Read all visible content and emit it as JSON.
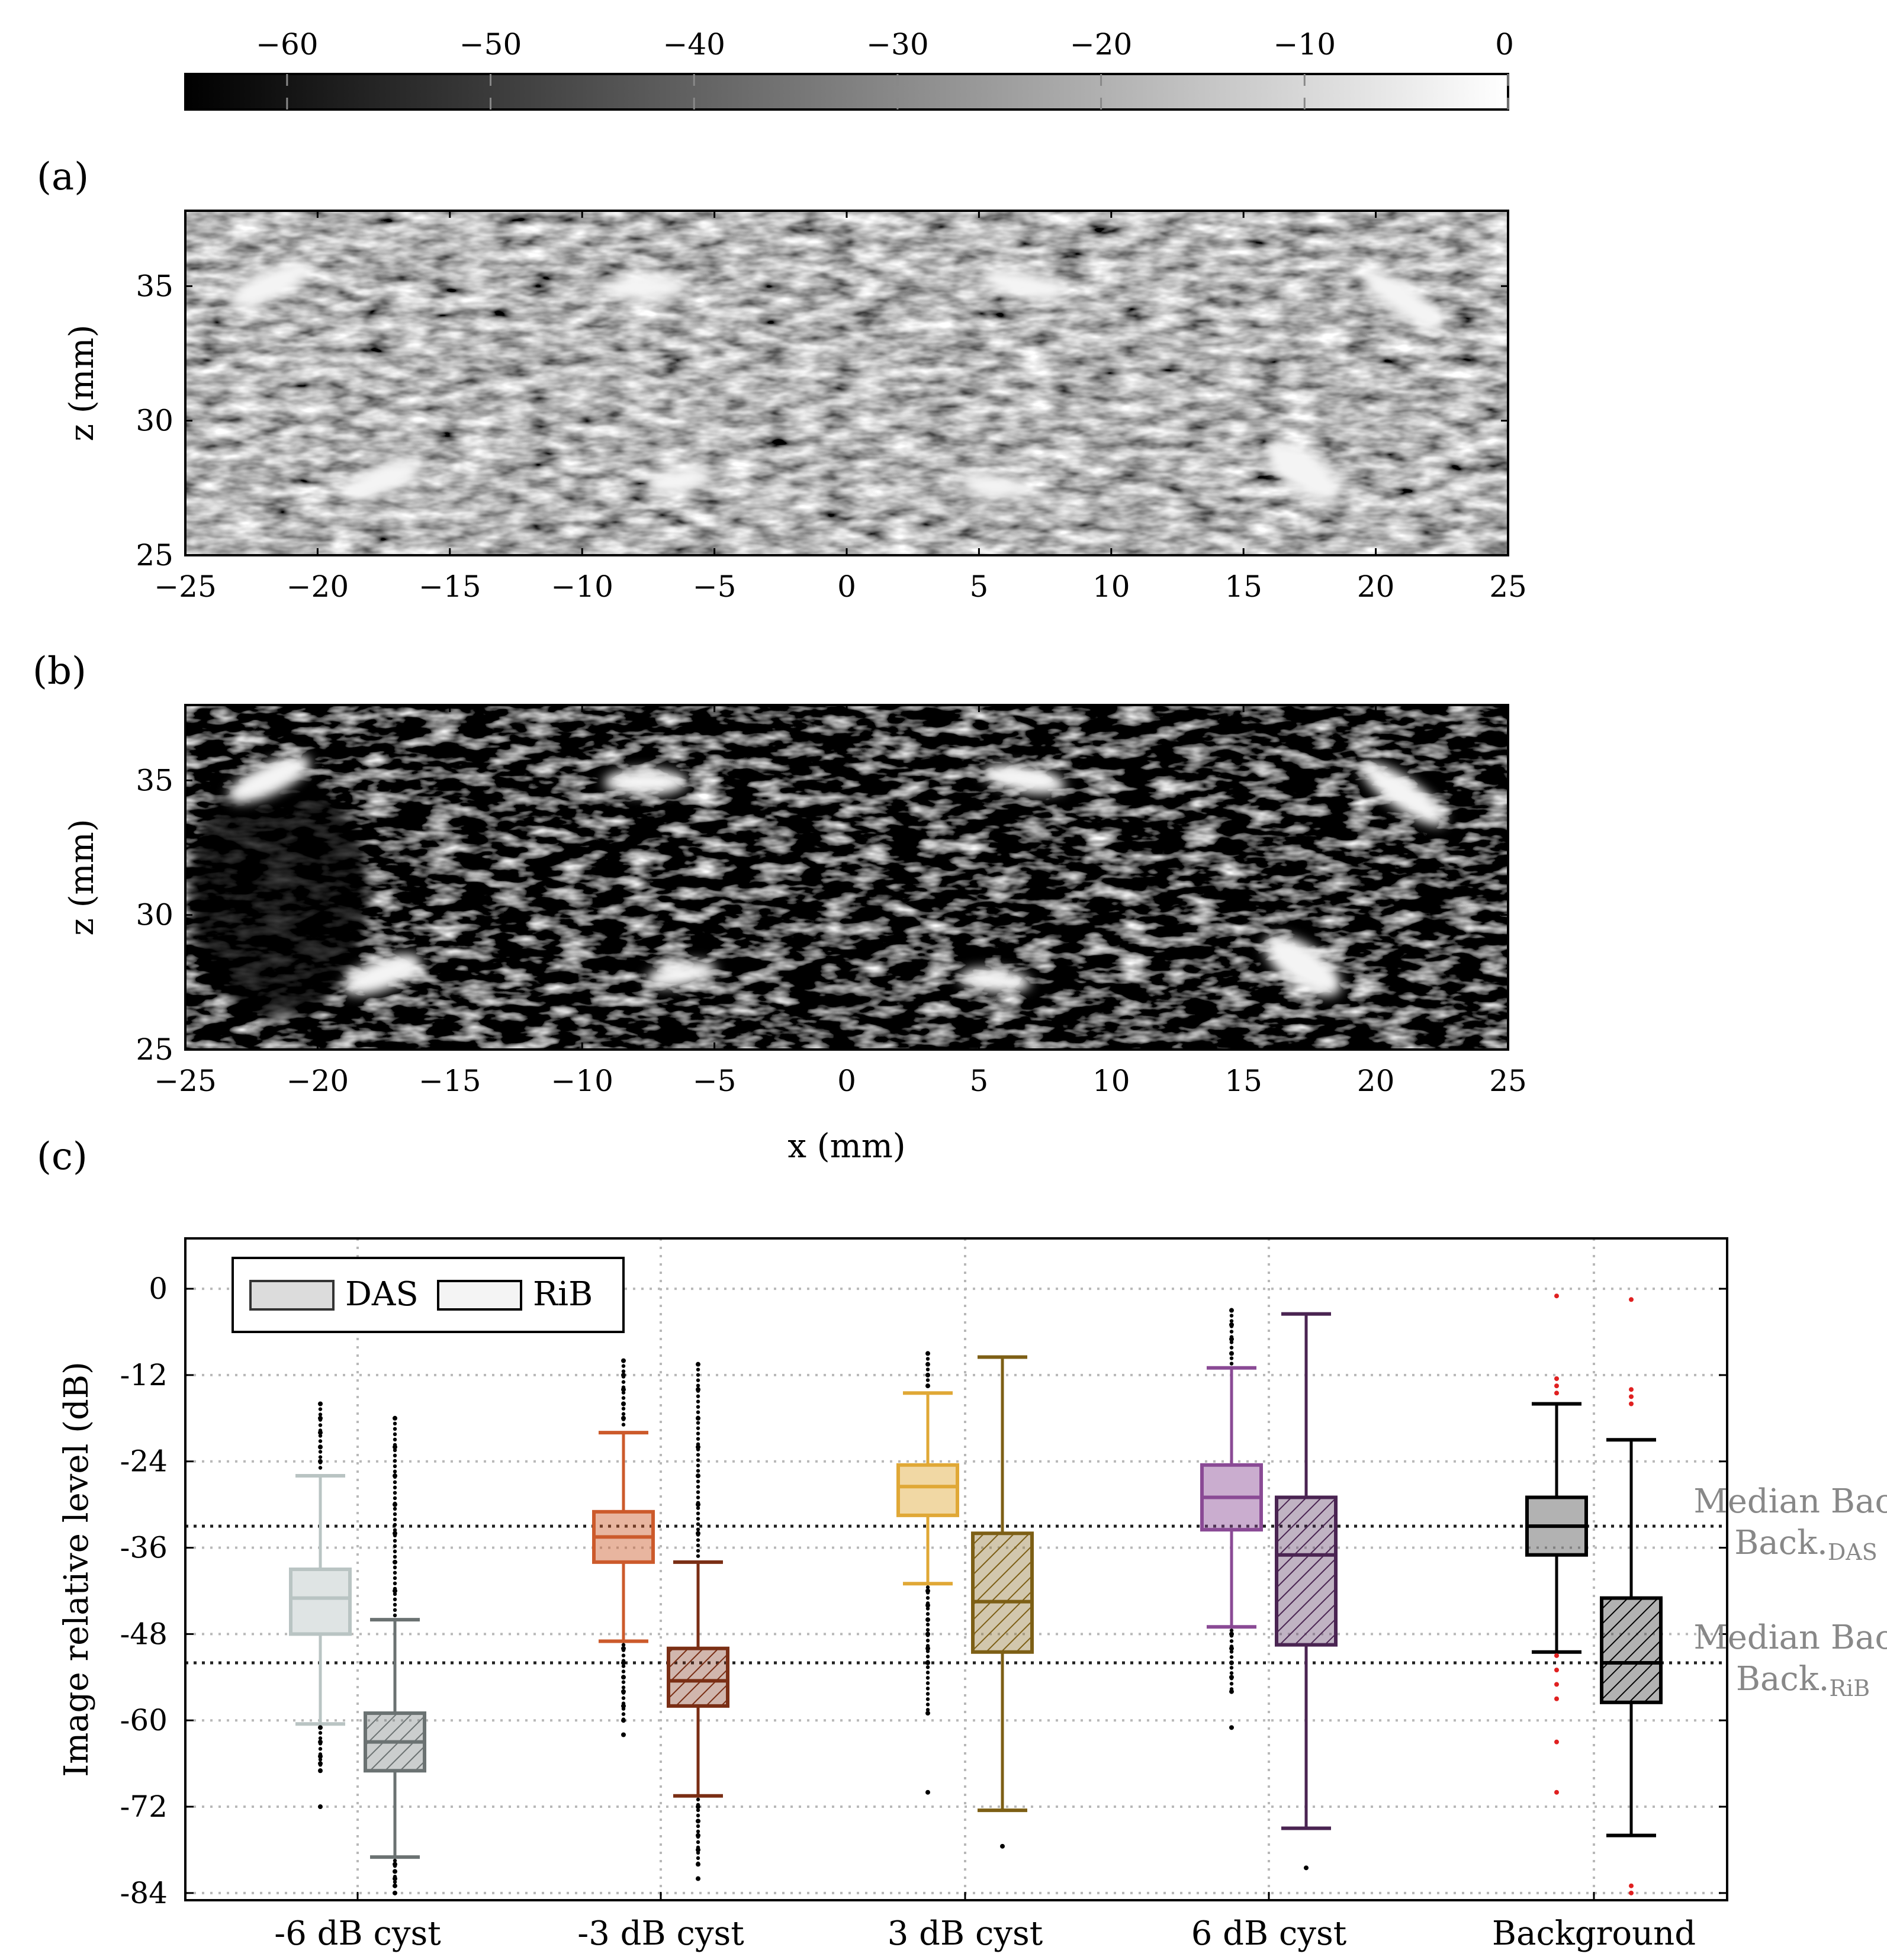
{
  "colorbar": {
    "ticks": [
      -60,
      -50,
      -40,
      -30,
      -20,
      -10,
      0
    ],
    "tick_labels": [
      "−60",
      "−50",
      "−40",
      "−30",
      "−20",
      "−10",
      "0"
    ],
    "range": [
      -65,
      0
    ],
    "colormap": "grayscale (black to white)"
  },
  "panel_a": {
    "label": "(a)",
    "ylabel": "z (mm)",
    "yticks": [
      "35",
      "30",
      "25"
    ],
    "xticks": [
      "−25",
      "−20",
      "−15",
      "−10",
      "−5",
      "0",
      "5",
      "10",
      "15",
      "20",
      "25"
    ]
  },
  "panel_b": {
    "label": "(b)",
    "ylabel": "z (mm)",
    "yticks": [
      "35",
      "30",
      "25"
    ],
    "xticks": [
      "−25",
      "−20",
      "−15",
      "−10",
      "−5",
      "0",
      "5",
      "10",
      "15",
      "20",
      "25"
    ],
    "xlabel": "x (mm)"
  },
  "panel_c": {
    "label": "(c)"
  },
  "colors": {
    "cyst_m6_das": "#b9c4c3",
    "cyst_m6_rib": "#6b7272",
    "cyst_m3_das": "#cc5a2b",
    "cyst_m3_rib": "#7a2e14",
    "cyst_p3_das": "#e0a836",
    "cyst_p3_rib": "#7d5f15",
    "cyst_p6_das": "#8a4a95",
    "cyst_p6_rib": "#4a2452",
    "background": "#000000",
    "background_outliers": "#e02020"
  },
  "chart_data": {
    "type": "box",
    "title": "",
    "xlabel": "",
    "ylabel": "Image relative level (dB)",
    "ylim": [
      -85,
      7
    ],
    "yticks": [
      0,
      -12,
      -24,
      -36,
      -48,
      -60,
      -72,
      -84
    ],
    "ytick_labels": [
      "0",
      "-12",
      "-24",
      "-36",
      "-48",
      "-60",
      "-72",
      "-84"
    ],
    "categories": [
      "-6 dB cyst",
      "-3 dB cyst",
      "3 dB cyst",
      "6 dB cyst",
      "Background"
    ],
    "legend": {
      "position": "top-left",
      "entries": [
        "DAS",
        "RiB"
      ]
    },
    "series": [
      {
        "name": "DAS",
        "fill": "solid",
        "boxes": [
          {
            "category": "-6 dB cyst",
            "whisker_low": -60.5,
            "q1": -48,
            "median": -43,
            "q3": -39,
            "whisker_high": -26,
            "outliers_low": [
              -61,
              -63,
              -65,
              -66,
              -67,
              -72
            ],
            "outliers_high": [
              -16,
              -18,
              -20,
              -22,
              -24
            ]
          },
          {
            "category": "-3 dB cyst",
            "whisker_low": -49,
            "q1": -38,
            "median": -34.5,
            "q3": -31,
            "whisker_high": -20,
            "outliers_low": [
              -50,
              -52,
              -54,
              -56,
              -58,
              -60,
              -62
            ],
            "outliers_high": [
              -10,
              -12,
              -14,
              -16,
              -18
            ]
          },
          {
            "category": "3 dB cyst",
            "whisker_low": -41,
            "q1": -31.5,
            "median": -27.5,
            "q3": -24.5,
            "whisker_high": -14.5,
            "outliers_low": [
              -42,
              -44,
              -46,
              -48,
              -50,
              -52,
              -59,
              -70
            ],
            "outliers_high": [
              -9,
              -10.5,
              -12,
              -13.5
            ]
          },
          {
            "category": "6 dB cyst",
            "whisker_low": -47,
            "q1": -33.5,
            "median": -29,
            "q3": -24.5,
            "whisker_high": -11,
            "outliers_low": [
              -48,
              -50,
              -52,
              -54,
              -56,
              -61
            ],
            "outliers_high": [
              -3,
              -5,
              -7,
              -9
            ]
          },
          {
            "category": "Background",
            "whisker_low": -50.5,
            "q1": -37,
            "median": -33,
            "q3": -29,
            "whisker_high": -16,
            "outliers_low": [
              -51,
              -53,
              -55,
              -57,
              -63,
              -70
            ],
            "outliers_high": [
              -1,
              -12.5,
              -13.5,
              -14.5
            ]
          }
        ]
      },
      {
        "name": "RiB",
        "fill": "hatched",
        "boxes": [
          {
            "category": "-6 dB cyst",
            "whisker_low": -79,
            "q1": -67,
            "median": -63,
            "q3": -59,
            "whisker_high": -46,
            "outliers_low": [
              -80,
              -81,
              -82,
              -83,
              -84
            ],
            "outliers_high": [
              -18,
              -22,
              -26,
              -30,
              -34,
              -38,
              -42
            ]
          },
          {
            "category": "-3 dB cyst",
            "whisker_low": -70.5,
            "q1": -58,
            "median": -54.5,
            "q3": -50,
            "whisker_high": -38,
            "outliers_low": [
              -72,
              -74,
              -76,
              -78,
              -80,
              -82
            ],
            "outliers_high": [
              -10.5,
              -14,
              -18,
              -22,
              -26,
              -30,
              -34
            ]
          },
          {
            "category": "3 dB cyst",
            "whisker_low": -72.5,
            "q1": -50.5,
            "median": -43.5,
            "q3": -34,
            "whisker_high": -9.5,
            "outliers_low": [
              -77.5
            ],
            "outliers_high": []
          },
          {
            "category": "6 dB cyst",
            "whisker_low": -75,
            "q1": -49.5,
            "median": -37,
            "q3": -29,
            "whisker_high": -3.5,
            "outliers_low": [
              -80.5
            ],
            "outliers_high": []
          },
          {
            "category": "Background",
            "whisker_low": -76,
            "q1": -57.5,
            "median": -52,
            "q3": -43,
            "whisker_high": -21,
            "outliers_low": [
              -83,
              -84
            ],
            "outliers_high": [
              -1.5,
              -14,
              -15,
              -16
            ]
          }
        ]
      }
    ],
    "reference_lines": [
      {
        "label": "Median Back.",
        "subscript": "DAS",
        "value": -33
      },
      {
        "label": "Median Back.",
        "subscript": "RiB",
        "value": -52
      }
    ]
  }
}
